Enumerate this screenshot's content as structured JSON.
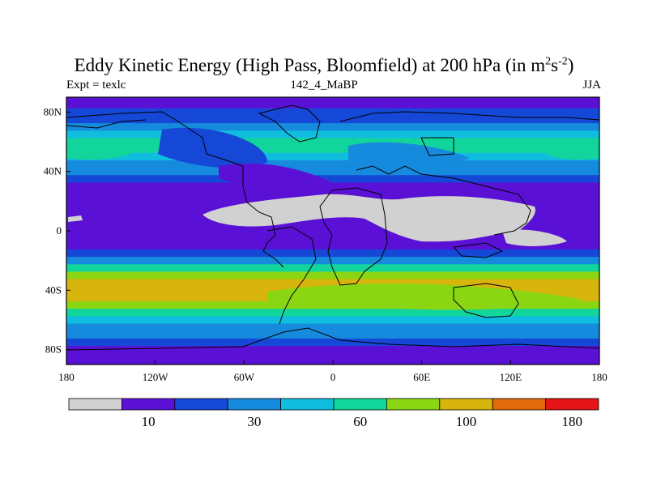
{
  "title": {
    "main": "Eddy Kinetic Energy (High Pass, Bloomfield) at 200 hPa (in m",
    "sup1": "2",
    "mid": "s",
    "sup2": "-2",
    "end": ")"
  },
  "subtitle": {
    "left": "Expt = texlc",
    "center": "142_4_MaBP",
    "right": "JJA"
  },
  "chart_data": {
    "type": "heatmap",
    "projection": "cylindrical-equidistant",
    "variable": "Eddy Kinetic Energy",
    "units": "m2 s-2",
    "level": "200 hPa",
    "season": "JJA",
    "x_ticks": [
      {
        "value": -180,
        "label": "180"
      },
      {
        "value": -120,
        "label": "120W"
      },
      {
        "value": -60,
        "label": "60W"
      },
      {
        "value": 0,
        "label": "0"
      },
      {
        "value": 60,
        "label": "60E"
      },
      {
        "value": 120,
        "label": "120E"
      },
      {
        "value": 180,
        "label": "180"
      }
    ],
    "y_ticks": [
      {
        "value": 80,
        "label": "80N"
      },
      {
        "value": 40,
        "label": "40N"
      },
      {
        "value": 0,
        "label": "0"
      },
      {
        "value": -40,
        "label": "40S"
      },
      {
        "value": -80,
        "label": "80S"
      }
    ],
    "xlim": [
      -180,
      180
    ],
    "ylim": [
      -90,
      90
    ],
    "contour_levels": [
      10,
      20,
      30,
      45,
      60,
      80,
      100,
      140,
      180
    ],
    "colorbar": {
      "colors": [
        "#d1d1d1",
        "#5b10d6",
        "#1648d8",
        "#168adc",
        "#11bddf",
        "#12d59b",
        "#8ad613",
        "#d8b50d",
        "#e06a0c",
        "#e41417"
      ],
      "labels": [
        {
          "index": 1,
          "text": "10"
        },
        {
          "index": 3,
          "text": "30"
        },
        {
          "index": 5,
          "text": "60"
        },
        {
          "index": 7,
          "text": "100"
        },
        {
          "index": 9,
          "text": "180"
        }
      ]
    },
    "lat_profile": [
      {
        "lat": 90,
        "value": 15
      },
      {
        "lat": 85,
        "value": 17
      },
      {
        "lat": 80,
        "value": 21
      },
      {
        "lat": 75,
        "value": 26
      },
      {
        "lat": 70,
        "value": 38
      },
      {
        "lat": 65,
        "value": 52
      },
      {
        "lat": 60,
        "value": 64
      },
      {
        "lat": 55,
        "value": 68
      },
      {
        "lat": 50,
        "value": 58
      },
      {
        "lat": 45,
        "value": 44
      },
      {
        "lat": 40,
        "value": 32
      },
      {
        "lat": 35,
        "value": 22
      },
      {
        "lat": 30,
        "value": 16
      },
      {
        "lat": 25,
        "value": 13
      },
      {
        "lat": 20,
        "value": 11
      },
      {
        "lat": 15,
        "value": 10.5
      },
      {
        "lat": 10,
        "value": 11
      },
      {
        "lat": 5,
        "value": 12
      },
      {
        "lat": 0,
        "value": 13
      },
      {
        "lat": -5,
        "value": 15
      },
      {
        "lat": -10,
        "value": 18
      },
      {
        "lat": -15,
        "value": 24
      },
      {
        "lat": -20,
        "value": 38
      },
      {
        "lat": -25,
        "value": 62
      },
      {
        "lat": -30,
        "value": 96
      },
      {
        "lat": -35,
        "value": 112
      },
      {
        "lat": -40,
        "value": 116
      },
      {
        "lat": -45,
        "value": 112
      },
      {
        "lat": -50,
        "value": 96
      },
      {
        "lat": -55,
        "value": 72
      },
      {
        "lat": -60,
        "value": 52
      },
      {
        "lat": -65,
        "value": 40
      },
      {
        "lat": -70,
        "value": 30
      },
      {
        "lat": -75,
        "value": 23
      },
      {
        "lat": -80,
        "value": 18
      },
      {
        "lat": -85,
        "value": 15
      },
      {
        "lat": -90,
        "value": 14
      }
    ]
  }
}
